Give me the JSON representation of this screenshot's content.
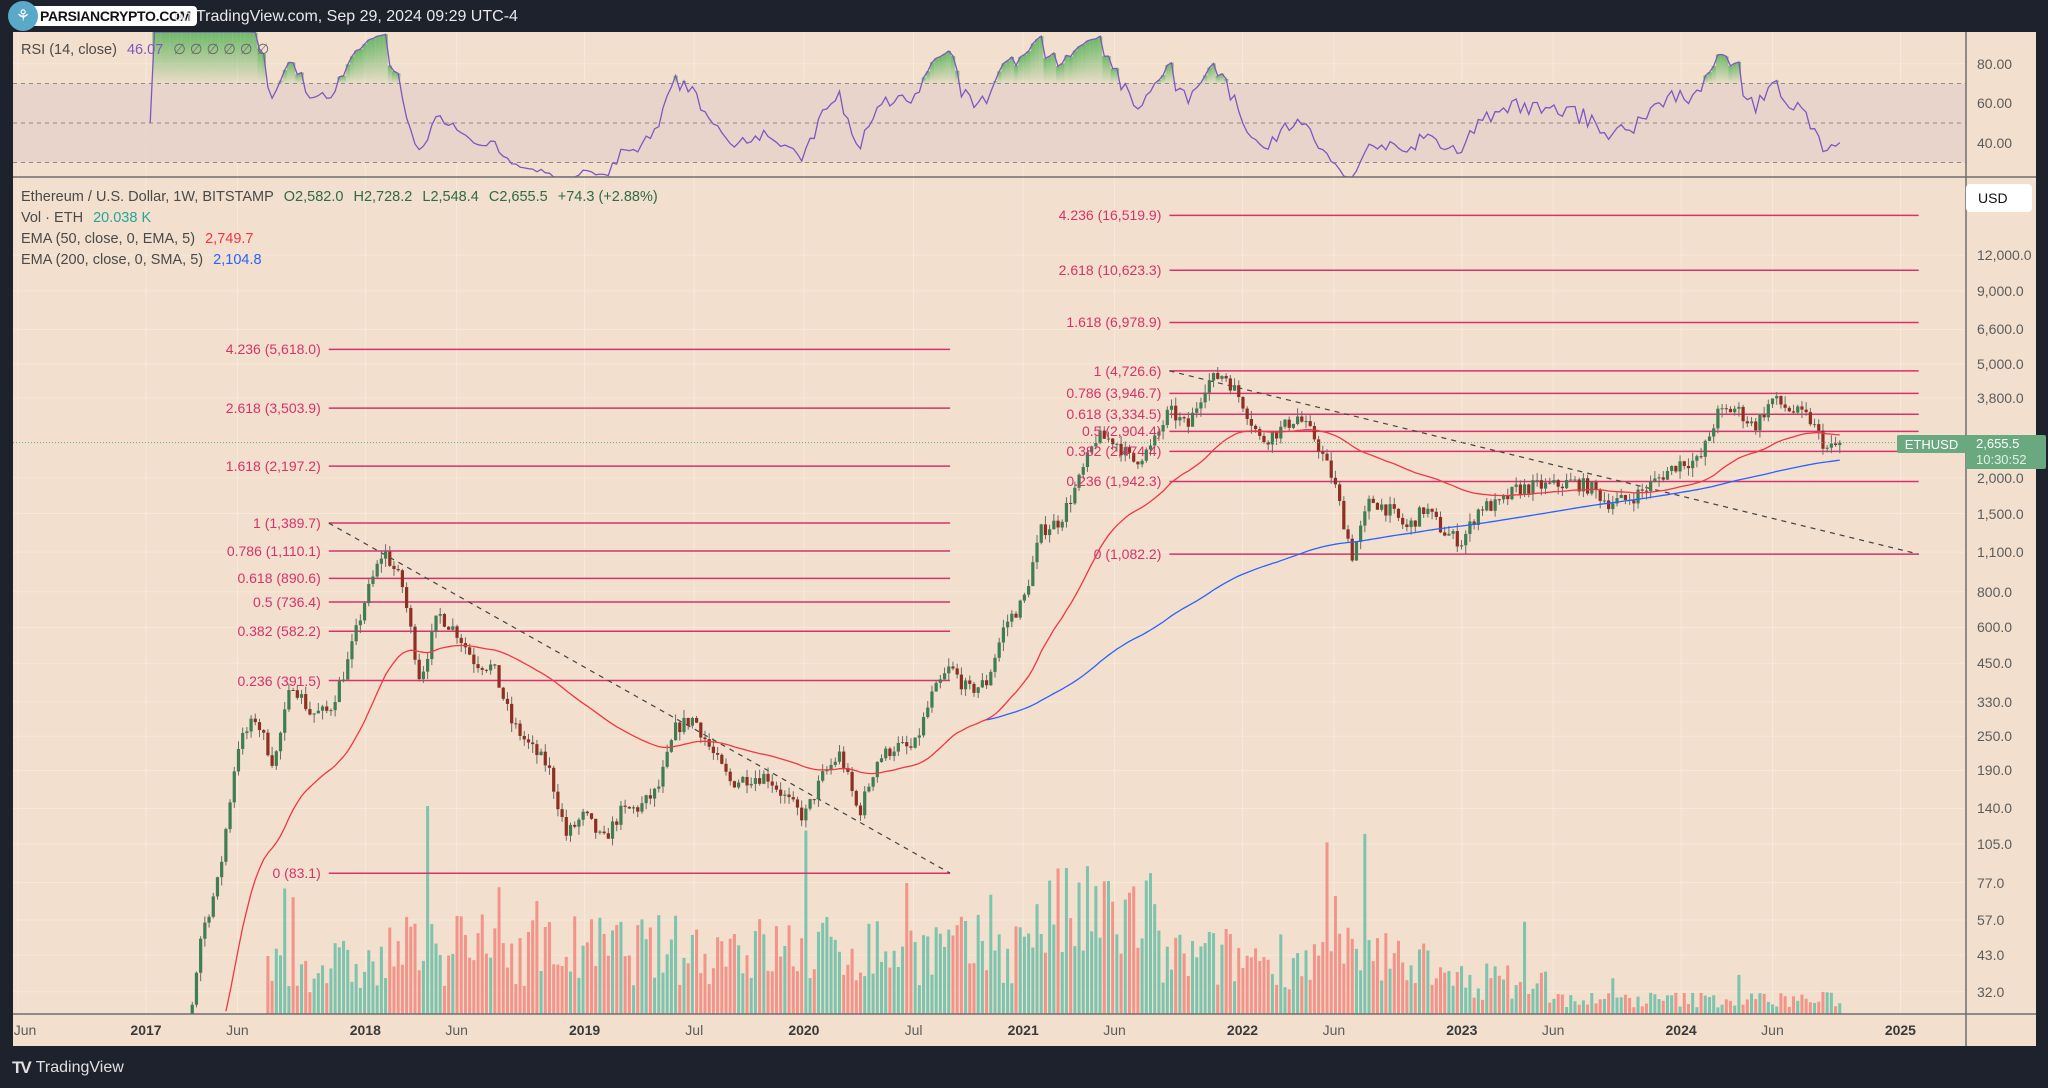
{
  "header": {
    "watermark": "PARSIANCRYPTO.COM",
    "caption": "on TradingView.com, Sep 29, 2024 09:29 UTC-4"
  },
  "rsi_legend": {
    "label": "RSI (14, close)",
    "value": "46.07",
    "extras": "∅ ∅ ∅ ∅ ∅ ∅"
  },
  "main_legend": {
    "symbol": "Ethereum / U.S. Dollar, 1W, BITSTAMP",
    "open": "O2,582.0",
    "high": "H2,728.2",
    "low": "L2,548.4",
    "close": "C2,655.5",
    "change": "+74.3 (+2.88%)",
    "vol_label": "Vol · ETH",
    "vol_value": "20.038 K",
    "ema50_label": "EMA (50, close, 0, EMA, 5)",
    "ema50_value": "2,749.7",
    "ema200_label": "EMA (200, close, 0, SMA, 5)",
    "ema200_value": "2,104.8"
  },
  "price_axis": {
    "currency": "USD",
    "ticks": [
      "12,000.0",
      "9,000.0",
      "6,600.0",
      "5,000.0",
      "3,800.0",
      "2,000.0",
      "1,500.0",
      "1,100.0",
      "800.0",
      "600.0",
      "450.0",
      "330.0",
      "250.0",
      "190.0",
      "140.0",
      "105.0",
      "77.0",
      "57.0",
      "43.0",
      "32.0"
    ],
    "rsi_ticks": [
      "80.00",
      "60.00",
      "40.00"
    ]
  },
  "last_price": {
    "symbol": "ETHUSD",
    "price": "2,655.5",
    "countdown": "10:30:52"
  },
  "time_axis": [
    {
      "label": "Jun",
      "date": "2016-06",
      "major": false
    },
    {
      "label": "2017",
      "date": "2017-01",
      "major": true
    },
    {
      "label": "Jun",
      "date": "2017-06",
      "major": false
    },
    {
      "label": "2018",
      "date": "2018-01",
      "major": true
    },
    {
      "label": "Jun",
      "date": "2018-06",
      "major": false
    },
    {
      "label": "2019",
      "date": "2019-01",
      "major": true
    },
    {
      "label": "Jul",
      "date": "2019-07",
      "major": false
    },
    {
      "label": "2020",
      "date": "2020-01",
      "major": true
    },
    {
      "label": "Jul",
      "date": "2020-07",
      "major": false
    },
    {
      "label": "2021",
      "date": "2021-01",
      "major": true
    },
    {
      "label": "Jun",
      "date": "2021-06",
      "major": false
    },
    {
      "label": "2022",
      "date": "2022-01",
      "major": true
    },
    {
      "label": "Jun",
      "date": "2022-06",
      "major": false
    },
    {
      "label": "2023",
      "date": "2023-01",
      "major": true
    },
    {
      "label": "Jun",
      "date": "2023-06",
      "major": false
    },
    {
      "label": "2024",
      "date": "2024-01",
      "major": true
    },
    {
      "label": "Jun",
      "date": "2024-06",
      "major": false
    },
    {
      "label": "2025",
      "date": "2025-01",
      "major": true
    }
  ],
  "footer": {
    "brand": "TradingView"
  },
  "colors": {
    "background": "#f2dfcd",
    "frame": "#1e222d",
    "fib": "#d6336c",
    "candle_up": "#3f7d52",
    "candle_down": "#8e2f22",
    "volume_up": "#7cc4ae",
    "volume_down": "#f2948a",
    "ema50": "#f23645",
    "ema200": "#2962ff",
    "rsi": "#7e57c2"
  },
  "chart_data": {
    "type": "candlestick",
    "interval": "1W",
    "scale": "log",
    "ylim": [
      32,
      16000
    ],
    "monthly_closes_from": "2017-01",
    "monthly_closes": [
      10,
      16,
      50,
      80,
      230,
      290,
      200,
      390,
      300,
      305,
      445,
      755,
      1120,
      855,
      395,
      670,
      580,
      455,
      435,
      280,
      230,
      197,
      113,
      133,
      107,
      136,
      141,
      162,
      268,
      290,
      218,
      172,
      180,
      182,
      152,
      130,
      180,
      218,
      133,
      206,
      231,
      225,
      345,
      435,
      360,
      386,
      615,
      737,
      1314,
      1416,
      1918,
      2773,
      2707,
      2275,
      2536,
      3433,
      3000,
      4288,
      4630,
      3680,
      2688,
      2920,
      3280,
      2730,
      1940,
      1070,
      1680,
      1550,
      1330,
      1570,
      1295,
      1196,
      1585,
      1605,
      1822,
      1870,
      1875,
      1934,
      1857,
      1645,
      1671,
      1815,
      2050,
      2280,
      2283,
      3340,
      3500,
      3015,
      3760,
      3440,
      3230,
      2510,
      2655.5
    ],
    "fib_retracements": [
      {
        "start": "2017-11",
        "end": "2020-09",
        "levels": [
          {
            "ratio": 4.236,
            "price": 5618.0,
            "label": "4.236 (5,618.0)"
          },
          {
            "ratio": 2.618,
            "price": 3503.9,
            "label": "2.618 (3,503.9)"
          },
          {
            "ratio": 1.618,
            "price": 2197.2,
            "label": "1.618 (2,197.2)"
          },
          {
            "ratio": 1,
            "price": 1389.7,
            "label": "1 (1,389.7)"
          },
          {
            "ratio": 0.786,
            "price": 1110.1,
            "label": "0.786 (1,110.1)"
          },
          {
            "ratio": 0.618,
            "price": 890.6,
            "label": "0.618 (890.6)"
          },
          {
            "ratio": 0.5,
            "price": 736.4,
            "label": "0.5 (736.4)"
          },
          {
            "ratio": 0.382,
            "price": 582.2,
            "label": "0.382 (582.2)"
          },
          {
            "ratio": 0.236,
            "price": 391.5,
            "label": "0.236 (391.5)"
          },
          {
            "ratio": 0,
            "price": 83.1,
            "label": "0 (83.1)"
          }
        ]
      },
      {
        "start": "2021-09",
        "end": "2025-02",
        "levels": [
          {
            "ratio": 4.236,
            "price": 16519.9,
            "label": "4.236 (16,519.9)"
          },
          {
            "ratio": 2.618,
            "price": 10623.3,
            "label": "2.618 (10,623.3)"
          },
          {
            "ratio": 1.618,
            "price": 6978.9,
            "label": "1.618 (6,978.9)"
          },
          {
            "ratio": 1,
            "price": 4726.6,
            "label": "1 (4,726.6)"
          },
          {
            "ratio": 0.786,
            "price": 3946.7,
            "label": "0.786 (3,946.7)"
          },
          {
            "ratio": 0.618,
            "price": 3334.5,
            "label": "0.618 (3,334.5)"
          },
          {
            "ratio": 0.5,
            "price": 2904.4,
            "label": "0.5 (2,904.4)"
          },
          {
            "ratio": 0.382,
            "price": 2474.4,
            "label": "0.382 (2,474.4)"
          },
          {
            "ratio": 0.236,
            "price": 1942.3,
            "label": "0.236 (1,942.3)"
          },
          {
            "ratio": 0,
            "price": 1082.2,
            "label": "0 (1,082.2)"
          }
        ]
      }
    ],
    "trendlines": [
      {
        "from": {
          "date": "2017-11",
          "price": 1389.7
        },
        "to": {
          "date": "2020-09",
          "price": 83.1
        }
      },
      {
        "from": {
          "date": "2021-09",
          "price": 4726.6
        },
        "to": {
          "date": "2025-02",
          "price": 1082.2
        }
      }
    ],
    "rsi_levels": [
      70,
      50,
      30
    ]
  }
}
